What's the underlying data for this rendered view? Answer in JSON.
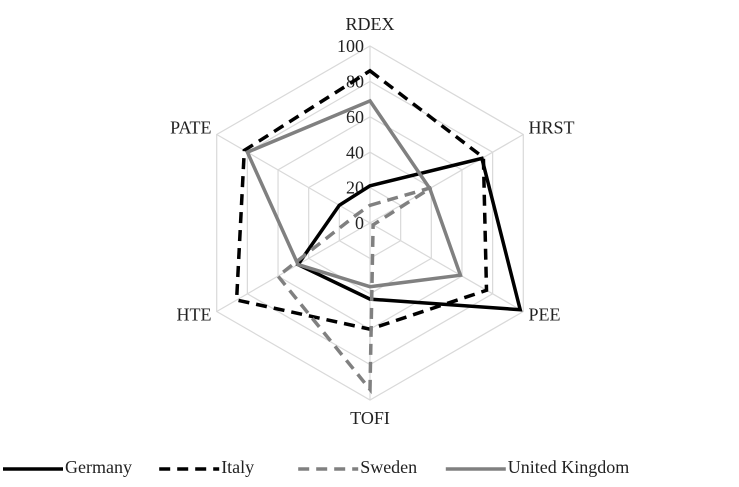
{
  "chart_data": {
    "type": "radar",
    "categories": [
      "RDEX",
      "HRST",
      "PEE",
      "TOFI",
      "HTE",
      "PATE"
    ],
    "series": [
      {
        "name": "Germany",
        "color": "#000000",
        "dash": "solid",
        "values": [
          21,
          73,
          98,
          43,
          47,
          20
        ]
      },
      {
        "name": "Italy",
        "color": "#000000",
        "dash": "dashed",
        "values": [
          86,
          74,
          76,
          60,
          87,
          82
        ]
      },
      {
        "name": "Sweden",
        "color": "#808080",
        "dash": "dashed",
        "values": [
          10,
          40,
          2,
          94,
          60,
          9
        ]
      },
      {
        "name": "United Kingdom",
        "color": "#808080",
        "dash": "solid",
        "values": [
          69,
          39,
          59,
          36,
          47,
          80
        ]
      }
    ],
    "rlim": [
      0,
      100
    ],
    "rticks": [
      0,
      20,
      40,
      60,
      80,
      100
    ],
    "grid": true,
    "legend": "bottom"
  }
}
